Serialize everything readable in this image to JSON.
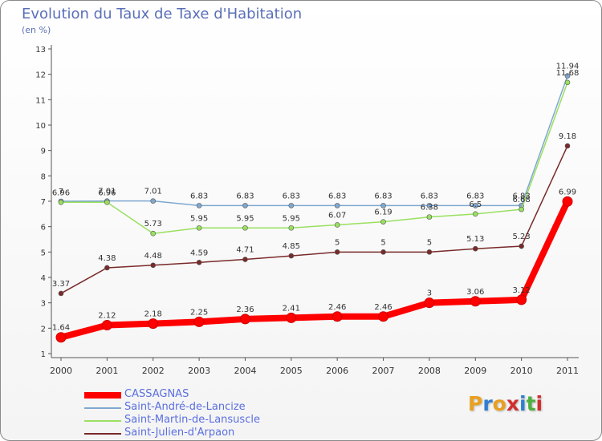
{
  "header": {
    "title": "Evolution du Taux de Taxe d'Habitation",
    "subtitle": "(en %)"
  },
  "logo": {
    "text": "Proxiti",
    "colors": [
      "#e8a020",
      "#2f7fd0",
      "#e8a020",
      "#d02f2f",
      "#2f7fd0",
      "#4fb040",
      "#d02f2f"
    ]
  },
  "chart_data": {
    "type": "line",
    "x": [
      "2000",
      "2001",
      "2002",
      "2003",
      "2004",
      "2005",
      "2006",
      "2007",
      "2008",
      "2009",
      "2010",
      "2011"
    ],
    "ylim": [
      1,
      13
    ],
    "yticks": [
      "1",
      "2",
      "3",
      "4",
      "5",
      "6",
      "7",
      "8",
      "9",
      "10",
      "11",
      "12",
      "13"
    ],
    "grid": false,
    "legend_position": "bottom-left",
    "series": [
      {
        "name": "CASSAGNAS",
        "color": "#ff0000",
        "values": [
          1.64,
          2.12,
          2.18,
          2.25,
          2.36,
          2.41,
          2.46,
          2.46,
          3,
          3.06,
          3.12,
          6.99
        ],
        "labels": [
          "1.64",
          "2.12",
          "2.18",
          "2.25",
          "2.36",
          "2.41",
          "2.46",
          "2.46",
          "3",
          "3.06",
          "3.12",
          "6.99"
        ],
        "emphasis": true
      },
      {
        "name": "Saint-André-de-Lancize",
        "color": "#7fa8d0",
        "values": [
          7,
          7.01,
          7.01,
          6.83,
          6.83,
          6.83,
          6.83,
          6.83,
          6.83,
          6.83,
          6.83,
          11.94
        ],
        "labels": [
          "7",
          "7.01",
          "7.01",
          "6.83",
          "6.83",
          "6.83",
          "6.83",
          "6.83",
          "6.83",
          "6.83",
          "6.83",
          "11.94"
        ]
      },
      {
        "name": "Saint-Martin-de-Lansuscle",
        "color": "#99e060",
        "values": [
          6.96,
          6.96,
          5.73,
          5.95,
          5.95,
          5.95,
          6.07,
          6.19,
          6.38,
          6.5,
          6.68,
          11.68
        ],
        "labels": [
          "6.96",
          "6.96",
          "5.73",
          "5.95",
          "5.95",
          "5.95",
          "6.07",
          "6.19",
          "6.38",
          "6.5",
          "6.68",
          "11.68"
        ]
      },
      {
        "name": "Saint-Julien-d'Arpaon",
        "color": "#7a2a2a",
        "values": [
          3.37,
          4.38,
          4.48,
          4.59,
          4.71,
          4.85,
          5,
          5,
          5,
          5.13,
          5.23,
          9.18
        ],
        "labels": [
          "3.37",
          "4.38",
          "4.48",
          "4.59",
          "4.71",
          "4.85",
          "5",
          "5",
          "5",
          "5.13",
          "5.23",
          "9.18"
        ]
      }
    ]
  }
}
